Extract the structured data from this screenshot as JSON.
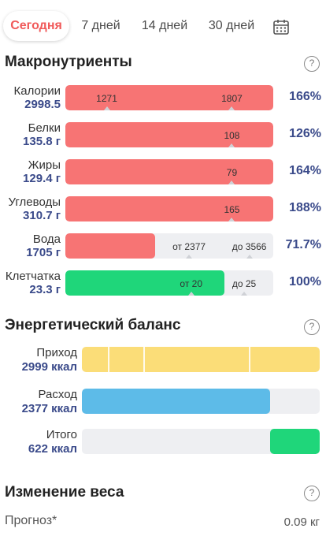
{
  "tabs": [
    {
      "label": "Сегодня",
      "active": true
    },
    {
      "label": "7 дней",
      "active": false
    },
    {
      "label": "14 дней",
      "active": false
    },
    {
      "label": "30 дней",
      "active": false
    }
  ],
  "macros": {
    "title": "Макронутриенты",
    "help": "?",
    "rows": [
      {
        "label": "Калории",
        "value": "2998.5",
        "percent": "166%",
        "color": "#f77474",
        "fill_fraction": 1.0,
        "marks": [
          {
            "text": "1271",
            "at": 0.199
          },
          {
            "text": "1807",
            "at": 0.801
          }
        ]
      },
      {
        "label": "Белки",
        "value": "135.8 г",
        "percent": "126%",
        "color": "#f77474",
        "fill_fraction": 1.0,
        "marks": [
          {
            "text": "108",
            "at": 0.801
          }
        ]
      },
      {
        "label": "Жиры",
        "value": "129.4 г",
        "percent": "164%",
        "color": "#f77474",
        "fill_fraction": 1.0,
        "marks": [
          {
            "text": "79",
            "at": 0.801
          }
        ]
      },
      {
        "label": "Углеводы",
        "value": "310.7 г",
        "percent": "188%",
        "color": "#f77474",
        "fill_fraction": 1.0,
        "marks": [
          {
            "text": "165",
            "at": 0.801
          }
        ]
      },
      {
        "label": "Вода",
        "value": "1705 г",
        "percent": "71.7%",
        "color": "#f77474",
        "fill_fraction": 0.43,
        "marks": [
          {
            "text": "от 2377",
            "at": 0.595
          },
          {
            "text": "до 3566",
            "at": 0.885
          }
        ]
      },
      {
        "label": "Клетчатка",
        "value": "23.3 г",
        "percent": "100%",
        "color": "#1fd67a",
        "fill_fraction": 0.765,
        "marks": [
          {
            "text": "от 20",
            "at": 0.605
          },
          {
            "text": "до 25",
            "at": 0.86
          }
        ]
      }
    ]
  },
  "energy": {
    "title": "Энергетический баланс",
    "help": "?",
    "rows": [
      {
        "label": "Приход",
        "value": "2999 ккал",
        "color": "#fbdd78",
        "from": 0.0,
        "to": 1.0,
        "segments": [
          0.112,
          0.26,
          0.706
        ]
      },
      {
        "label": "Расход",
        "value": "2377 ккал",
        "color": "#5dbbe8",
        "from": 0.0,
        "to": 0.793,
        "segments": []
      },
      {
        "label": "Итого",
        "value": "622 ккал",
        "color": "#1fd67a",
        "from": 0.793,
        "to": 1.0,
        "segments": []
      }
    ]
  },
  "weight": {
    "title": "Изменение веса",
    "help": "?",
    "forecast_label": "Прогноз*",
    "forecast_value": "0.09 кг"
  }
}
